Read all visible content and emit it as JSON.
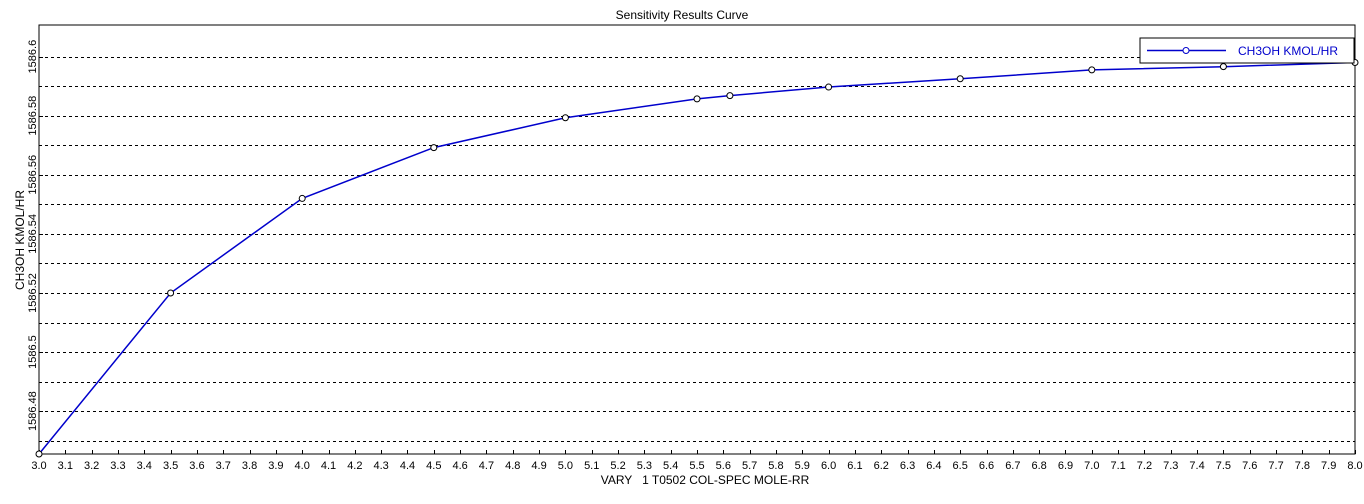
{
  "chart_data": {
    "type": "line",
    "title": "Sensitivity Results Curve",
    "xlabel": "VARY   1 T0502 COL-SPEC MOLE-RR",
    "ylabel": "CH3OH KMOL/HR",
    "xlim": [
      3.0,
      8.0
    ],
    "ylim": [
      1586.4655,
      1586.6107
    ],
    "x_ticks": [
      3.0,
      3.1,
      3.2,
      3.3,
      3.4,
      3.5,
      3.6,
      3.7,
      3.8,
      3.9,
      4.0,
      4.1,
      4.2,
      4.3,
      4.4,
      4.5,
      4.6,
      4.7,
      4.8,
      4.9,
      5.0,
      5.1,
      5.2,
      5.3,
      5.4,
      5.5,
      5.6,
      5.7,
      5.8,
      5.9,
      6.0,
      6.1,
      6.2,
      6.3,
      6.4,
      6.5,
      6.6,
      6.7,
      6.8,
      6.9,
      7.0,
      7.1,
      7.2,
      7.3,
      7.4,
      7.5,
      7.6,
      7.7,
      7.8,
      7.9,
      8.0
    ],
    "x_tick_labels": [
      "3.0",
      "3.1",
      "3.2",
      "3.3",
      "3.4",
      "3.5",
      "3.6",
      "3.7",
      "3.8",
      "3.9",
      "4.0",
      "4.1",
      "4.2",
      "4.3",
      "4.4",
      "4.5",
      "4.6",
      "4.7",
      "4.8",
      "4.9",
      "5.0",
      "5.1",
      "5.2",
      "5.3",
      "5.4",
      "5.5",
      "5.6",
      "5.7",
      "5.8",
      "5.9",
      "6.0",
      "6.1",
      "6.2",
      "6.3",
      "6.4",
      "6.5",
      "6.6",
      "6.7",
      "6.8",
      "6.9",
      "7.0",
      "7.1",
      "7.2",
      "7.3",
      "7.4",
      "7.5",
      "7.6",
      "7.7",
      "7.8",
      "7.9",
      "8.0"
    ],
    "y_ticks": [
      1586.48,
      1586.5,
      1586.52,
      1586.54,
      1586.56,
      1586.58,
      1586.6
    ],
    "y_tick_labels": [
      "1586.48",
      "1586.5",
      "1586.52",
      "1586.54",
      "1586.56",
      "1586.58",
      "1586.6"
    ],
    "y_grid_minor": [
      1586.47,
      1586.49,
      1586.51,
      1586.53,
      1586.55,
      1586.57,
      1586.59
    ],
    "grid": true,
    "legend_position": "top-right",
    "series": [
      {
        "name": "CH3OH KMOL/HR",
        "color": "#0000cc",
        "x": [
          3.0,
          3.5,
          4.0,
          4.5,
          5.0,
          5.5,
          5.625,
          6.0,
          6.5,
          7.0,
          7.5,
          8.0
        ],
        "y": [
          1586.4655,
          1586.52,
          1586.552,
          1586.5692,
          1586.5793,
          1586.5857,
          1586.5868,
          1586.5897,
          1586.5925,
          1586.5955,
          1586.5966,
          1586.598
        ]
      }
    ]
  }
}
